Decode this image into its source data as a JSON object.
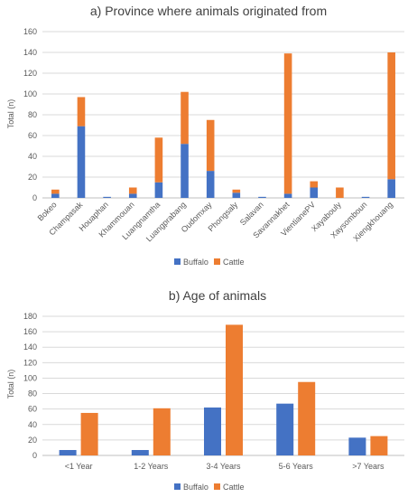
{
  "chart_data": [
    {
      "type": "bar",
      "stacked": true,
      "title": "a) Province where animals originated from",
      "ylabel": "Total (n)",
      "ylim": [
        0,
        160
      ],
      "yticks": [
        0,
        20,
        40,
        60,
        80,
        100,
        120,
        140,
        160
      ],
      "categories": [
        "Bokeo",
        "Champasak",
        "Houaphan",
        "Khammouan",
        "Luangnamtha",
        "Luangprabang",
        "Oudomxay",
        "Phongsaly",
        "Salavan",
        "Savannakhet",
        "VientianePV",
        "Xayabouly",
        "Xaysomboun",
        "Xiengkhouang"
      ],
      "series": [
        {
          "name": "Buffalo",
          "color": "#4472C4",
          "values": [
            4,
            69,
            1,
            4,
            15,
            52,
            26,
            5,
            1,
            4,
            10,
            0,
            1,
            18
          ]
        },
        {
          "name": "Cattle",
          "color": "#ED7D31",
          "values": [
            4,
            28,
            0,
            6,
            43,
            50,
            49,
            3,
            0,
            135,
            6,
            10,
            0,
            122
          ]
        }
      ],
      "grid": true,
      "legend": "bottom"
    },
    {
      "type": "bar",
      "stacked": false,
      "title": "b) Age of animals",
      "ylabel": "Total (n)",
      "ylim": [
        0,
        180
      ],
      "yticks": [
        0,
        20,
        40,
        60,
        80,
        100,
        120,
        140,
        160,
        180
      ],
      "categories": [
        "<1 Year",
        "1-2 Years",
        "3-4 Years",
        "5-6 Years",
        ">7 Years"
      ],
      "series": [
        {
          "name": "Buffalo",
          "color": "#4472C4",
          "values": [
            7,
            7,
            62,
            67,
            23
          ]
        },
        {
          "name": "Cattle",
          "color": "#ED7D31",
          "values": [
            55,
            61,
            169,
            95,
            25
          ]
        }
      ],
      "grid": true,
      "legend": "bottom"
    }
  ]
}
